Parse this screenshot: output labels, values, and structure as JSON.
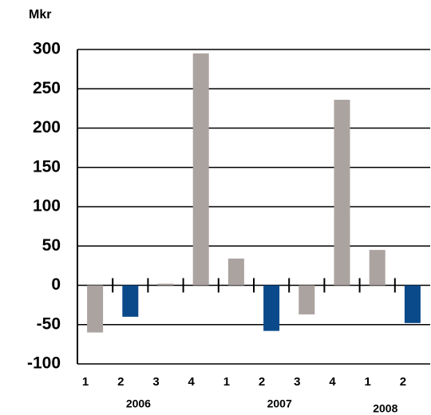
{
  "chart_data": {
    "type": "bar",
    "y_axis_label": "Mkr",
    "categories": [
      "1",
      "2",
      "3",
      "4",
      "1",
      "2",
      "3",
      "4",
      "1",
      "2"
    ],
    "groups": [
      {
        "name": "2006",
        "count": 4
      },
      {
        "name": "2007",
        "count": 4
      },
      {
        "name": "2008",
        "count": 2
      }
    ],
    "values": [
      -60,
      -40,
      2,
      295,
      34,
      -58,
      -37,
      236,
      45,
      -48
    ],
    "colors": [
      "#aba39f",
      "#0a4a8a",
      "#aba39f",
      "#aba39f",
      "#aba39f",
      "#0a4a8a",
      "#aba39f",
      "#aba39f",
      "#aba39f",
      "#0a4a8a"
    ],
    "ylim": [
      -100,
      300
    ],
    "yticks": [
      -100,
      -50,
      0,
      50,
      100,
      150,
      200,
      250,
      300
    ],
    "grid": true
  }
}
